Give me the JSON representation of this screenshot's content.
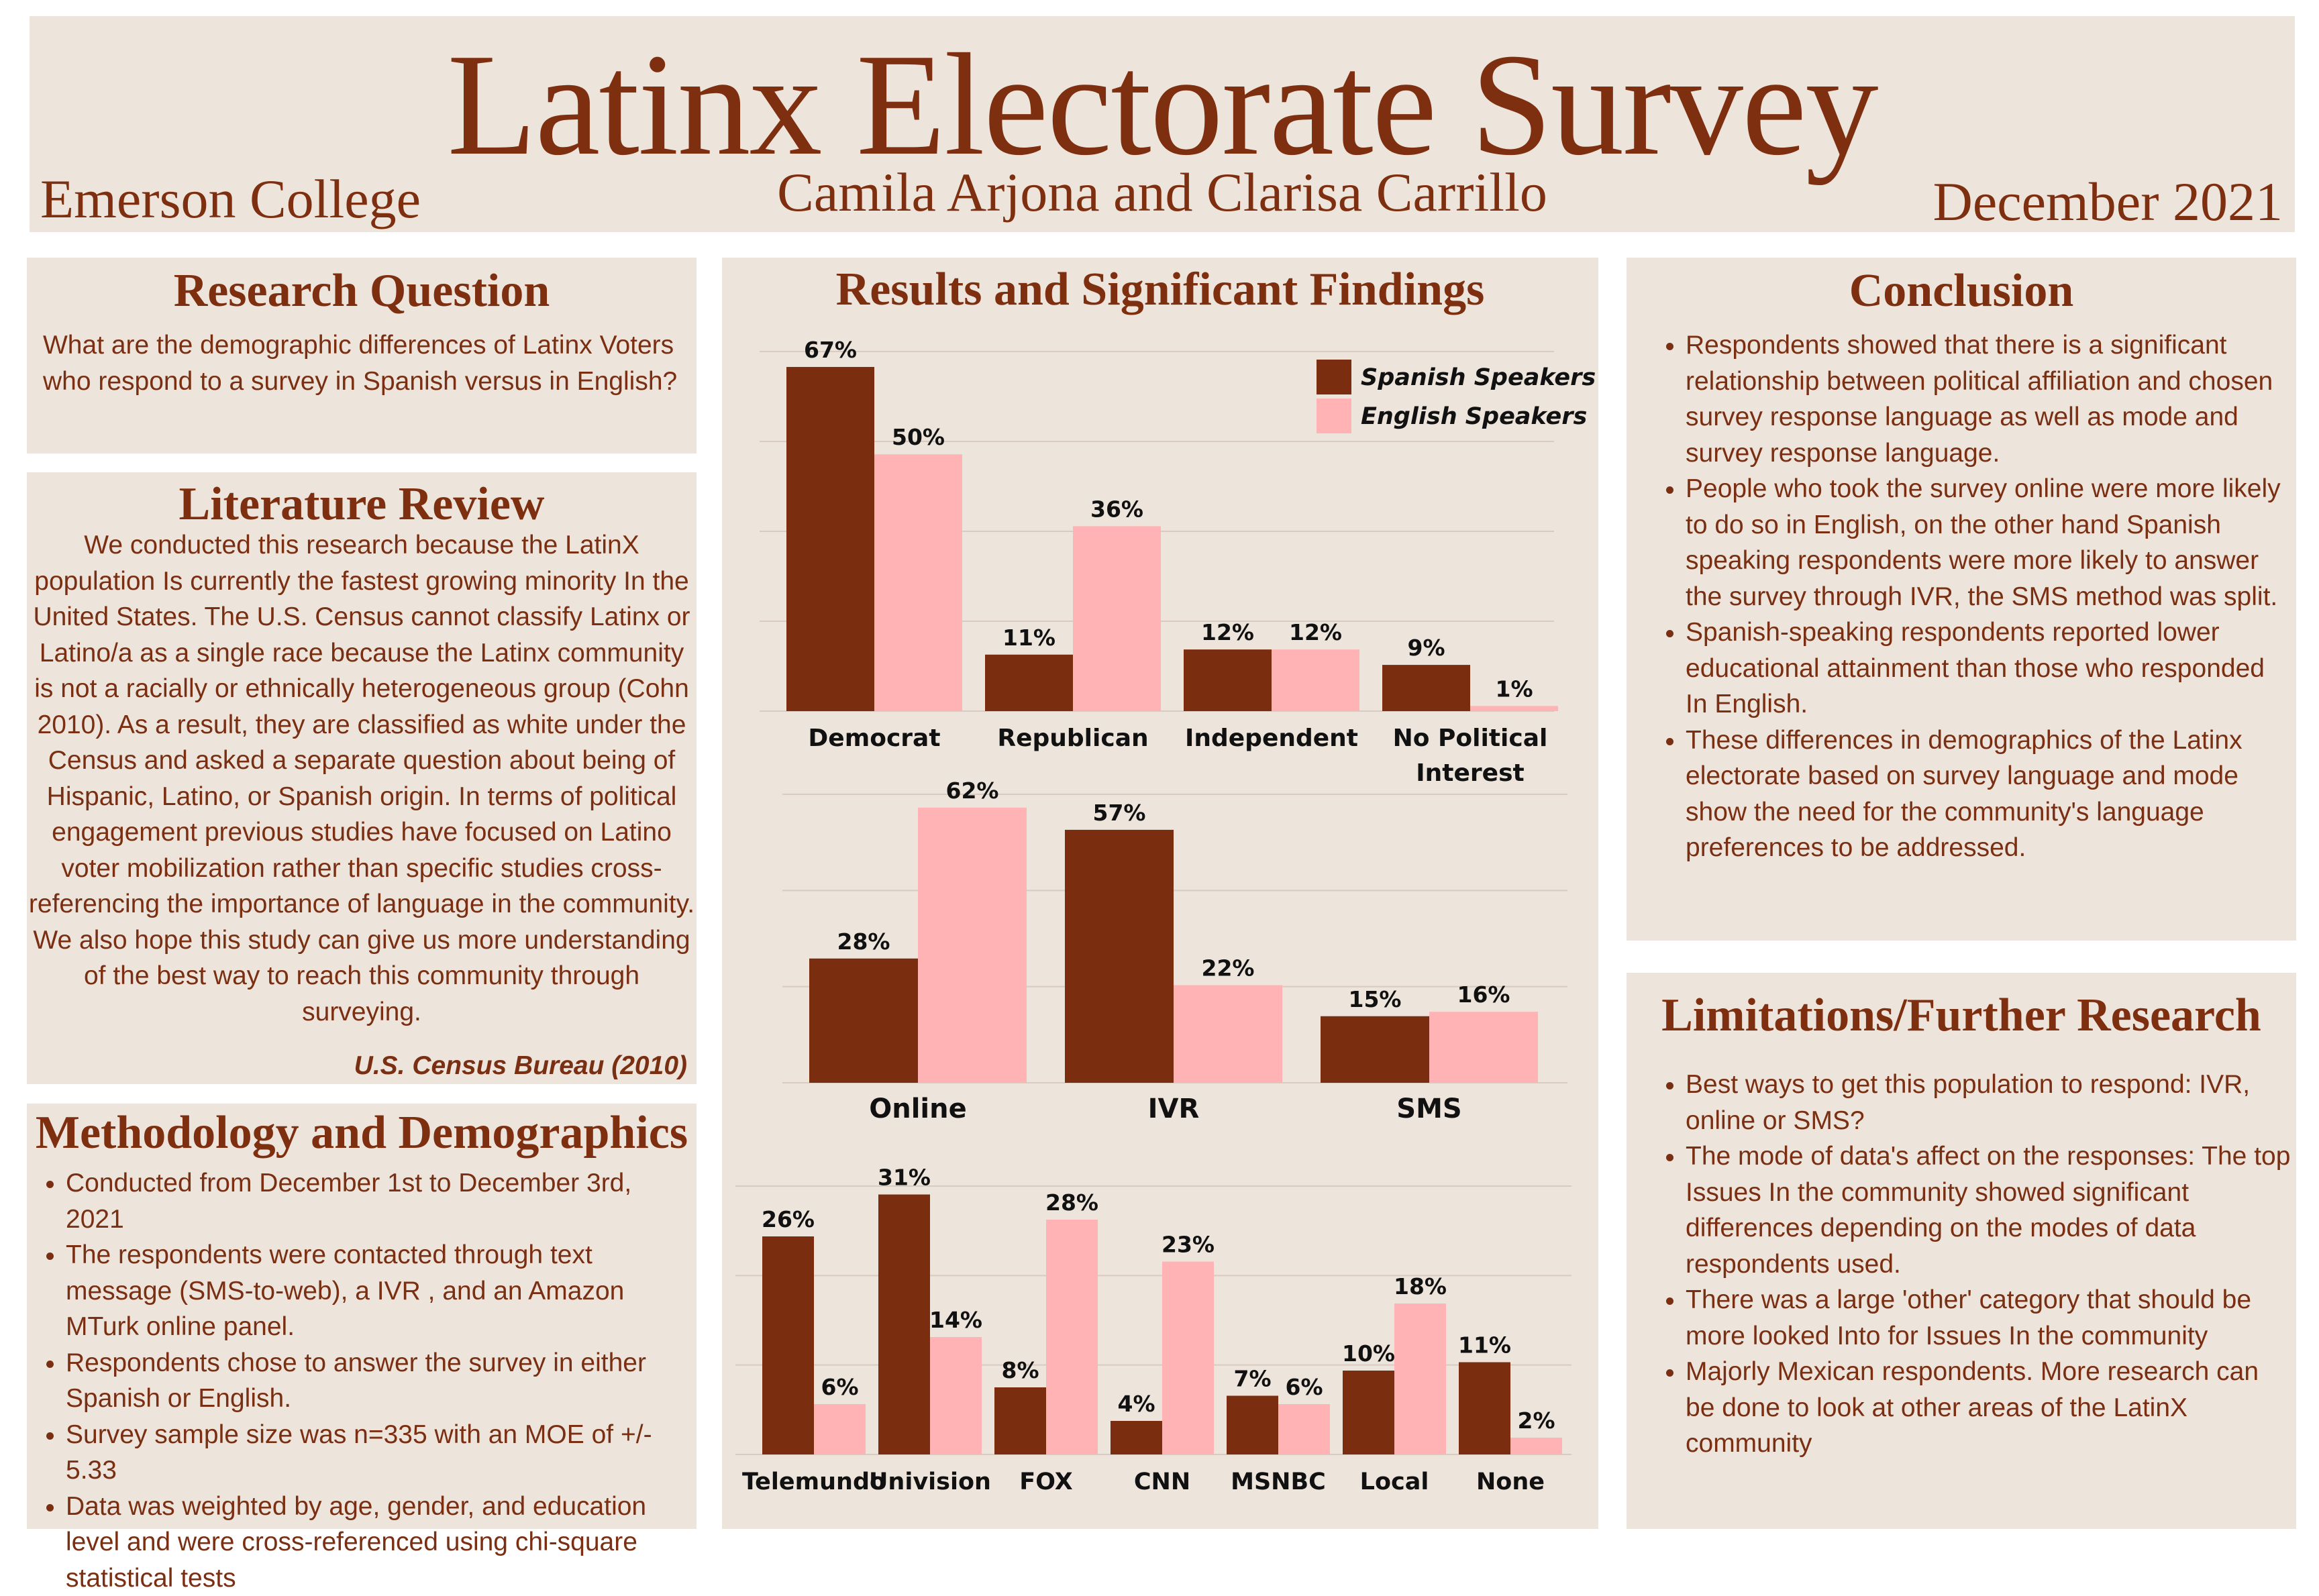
{
  "header": {
    "title": "Latinx Electorate Survey",
    "college": "Emerson College",
    "authors": "Camila Arjona and Clarisa Carrillo",
    "date": "December 2021"
  },
  "research_question": {
    "title": "Research Question",
    "text": "What are the demographic differences of Latinx Voters who respond to a survey in Spanish versus in English?"
  },
  "literature_review": {
    "title": "Literature Review",
    "text": "We conducted this research because the LatinX population Is currently the fastest growing minority In the United States. The U.S. Census cannot classify Latinx or Latino/a as a single race because the Latinx community is not a racially or ethnically heterogeneous group (Cohn 2010). As a result, they are classified as white under the Census and asked a separate question about being of Hispanic, Latino, or Spanish origin. In terms of political engagement previous studies have focused on Latino voter mobilization rather than specific studies cross-referencing the importance of language in the community. We also hope this study can give us more understanding of the best way to reach this community through surveying.",
    "citation": "U.S. Census Bureau (2010)"
  },
  "methodology": {
    "title": "Methodology and Demographics",
    "items": [
      "Conducted from December 1st to December 3rd, 2021",
      "The respondents were contacted through text message (SMS-to-web), a IVR , and an Amazon MTurk online panel.",
      "Respondents chose to answer the survey in either Spanish or English.",
      "Survey sample size was n=335 with an MOE of +/- 5.33",
      "Data was weighted by age, gender, and education level and were cross-referenced using chi-square statistical tests"
    ]
  },
  "results": {
    "title": "Results and Significant Findings"
  },
  "conclusion": {
    "title": "Conclusion",
    "items": [
      "Respondents showed that there is a significant relationship between political affiliation and chosen survey response language as well as mode and survey response language.",
      "People who took the survey online were more likely to do so in English, on the other hand Spanish speaking respondents were more likely to answer the survey through IVR, the SMS method was split.",
      "Spanish-speaking respondents reported lower educational attainment than those who responded In English.",
      "These differences in demographics of the Latinx electorate based on survey language and mode show the need for the community's language preferences to be addressed."
    ]
  },
  "limitations": {
    "title": "Limitations/Further Research",
    "items": [
      "Best ways to get this population to respond: IVR, online or SMS?",
      "The mode of data's affect on the responses: The top Issues In the community showed significant differences depending on the modes of data respondents used.",
      "There was a large 'other' category that should be more looked Into for Issues In the community",
      "Majorly Mexican respondents. More research can be done to look at other areas of the LatinX community"
    ]
  },
  "colors": {
    "spanish": "#7b2d0f",
    "english": "#ffb3b5",
    "text": "#7a2f12",
    "panel": "#ede4dc"
  },
  "chart_data": [
    {
      "type": "bar",
      "categories": [
        "Democrat",
        "Republican",
        "Independent",
        "No Political Interest"
      ],
      "series": [
        {
          "name": "Spanish Speakers",
          "values": [
            67,
            11,
            12,
            9
          ]
        },
        {
          "name": "English Speakers",
          "values": [
            50,
            36,
            12,
            1
          ]
        }
      ],
      "value_labels": {
        "Spanish Speakers": [
          "67%",
          "11%",
          "12%",
          "9%"
        ],
        "English Speakers": [
          "50%",
          "36%",
          "12%",
          "1%"
        ]
      },
      "ylim": [
        0,
        70
      ],
      "legend": "top-right",
      "grid": true
    },
    {
      "type": "bar",
      "categories": [
        "Online",
        "IVR",
        "SMS"
      ],
      "series": [
        {
          "name": "Spanish Speakers",
          "values": [
            28,
            57,
            15
          ]
        },
        {
          "name": "English Speakers",
          "values": [
            62,
            22,
            16
          ]
        }
      ],
      "value_labels": {
        "Spanish Speakers": [
          "28%",
          "57%",
          "15%"
        ],
        "English Speakers": [
          "62%",
          "22%",
          "16%"
        ]
      },
      "ylim": [
        0,
        65
      ],
      "grid": true
    },
    {
      "type": "bar",
      "categories": [
        "Telemundo",
        "Univision",
        "FOX",
        "CNN",
        "MSNBC",
        "Local",
        "None"
      ],
      "series": [
        {
          "name": "Spanish Speakers",
          "values": [
            26,
            31,
            8,
            4,
            7,
            10,
            11
          ]
        },
        {
          "name": "English Speakers",
          "values": [
            6,
            14,
            28,
            23,
            6,
            18,
            2
          ]
        }
      ],
      "value_labels": {
        "Spanish Speakers": [
          "26%",
          "31%",
          "8%",
          "4%",
          "7%",
          "10%",
          "11%"
        ],
        "English Speakers": [
          "6%",
          "14%",
          "28%",
          "23%",
          "6%",
          "18%",
          "2%"
        ]
      },
      "ylim": [
        0,
        32
      ],
      "grid": true
    }
  ]
}
